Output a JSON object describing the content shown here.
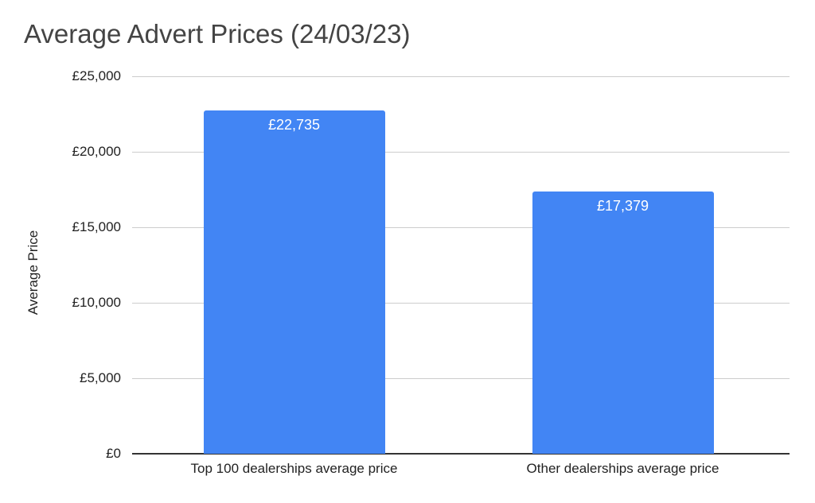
{
  "chart_data": {
    "type": "bar",
    "title": "Average Advert Prices (24/03/23)",
    "xlabel": "",
    "ylabel": "Average Price",
    "categories": [
      "Top 100 dealerships average price",
      "Other dealerships average price"
    ],
    "values": [
      22735,
      17379
    ],
    "data_labels": [
      "£22,735",
      "£17,379"
    ],
    "ylim": [
      0,
      25000
    ],
    "yticks": [
      0,
      5000,
      10000,
      15000,
      20000,
      25000
    ],
    "ytick_labels": [
      "£0",
      "£5,000",
      "£10,000",
      "£15,000",
      "£20,000",
      "£25,000"
    ],
    "grid": true,
    "legend": null,
    "colors": {
      "bar": "#4285f4",
      "grid": "#cccccc",
      "axis": "#333333"
    }
  }
}
